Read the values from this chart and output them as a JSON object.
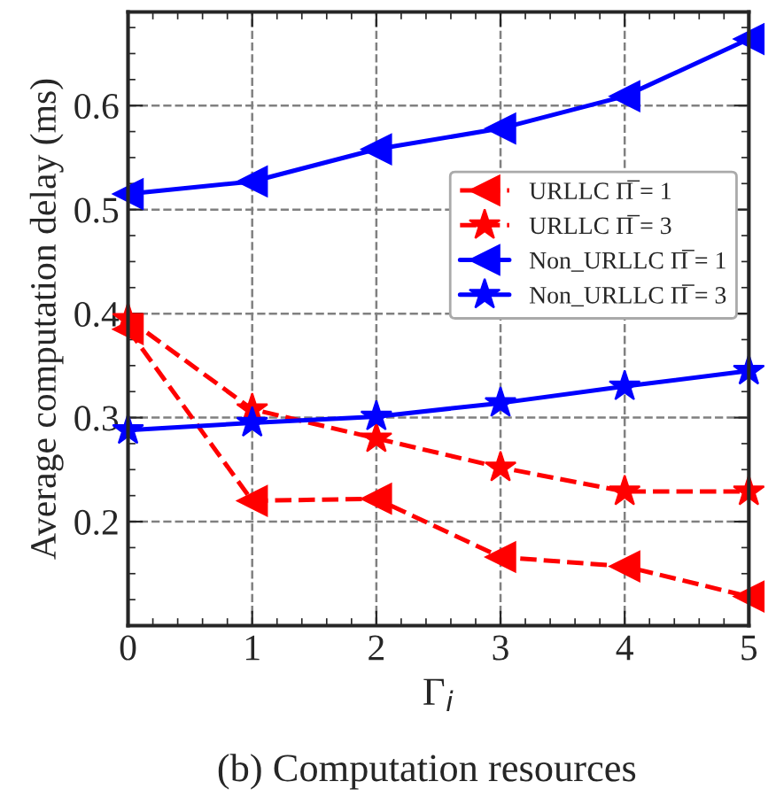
{
  "chart_data": {
    "type": "line",
    "x": [
      0,
      1,
      2,
      3,
      4,
      5
    ],
    "xlabel": "Γ$_{i}$",
    "ylabel": "Average computation delay (ms)",
    "annotations": [
      "(b) Computation resources"
    ],
    "series": [
      {
        "name": "URLLC Π̅ = 1",
        "color": "#ff0000",
        "marker": "triangle",
        "line_style": "dashed",
        "values": [
          0.385,
          0.22,
          0.222,
          0.166,
          0.157,
          0.128
        ]
      },
      {
        "name": "URLLC Π̅ = 3",
        "color": "#ff0000",
        "marker": "star",
        "line_style": "dashed",
        "values": [
          0.395,
          0.308,
          0.28,
          0.252,
          0.229,
          0.229
        ]
      },
      {
        "name": "Non_URLLC Π̅ = 1",
        "color": "#0000ff",
        "marker": "triangle",
        "line_style": "solid",
        "values": [
          0.515,
          0.527,
          0.558,
          0.578,
          0.609,
          0.664
        ]
      },
      {
        "name": "Non_URLLC Π̅ = 3",
        "color": "#0000ff",
        "marker": "star",
        "line_style": "solid",
        "values": [
          0.288,
          0.295,
          0.301,
          0.314,
          0.33,
          0.345
        ]
      }
    ],
    "xlim": [
      0,
      5
    ],
    "ylim": [
      0.1,
      0.69
    ],
    "xticks": [
      0,
      1,
      2,
      3,
      4,
      5
    ],
    "yticks": [
      0.2,
      0.3,
      0.4,
      0.5,
      0.6
    ],
    "grid": true,
    "legend": "right"
  }
}
